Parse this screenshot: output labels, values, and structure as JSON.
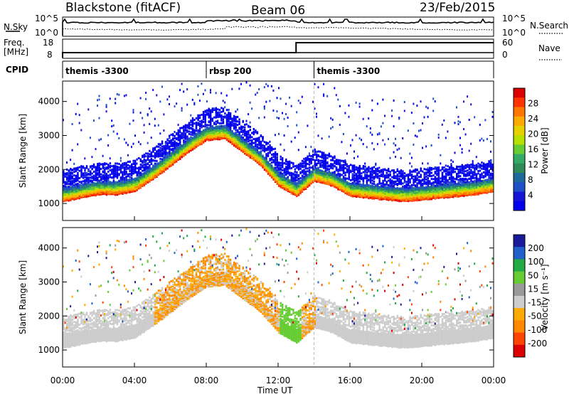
{
  "header": {
    "station": "Blackstone (fitACF)",
    "beam": "Beam 06",
    "date": "23/Feb/2015"
  },
  "top_panels": {
    "nsky_label": "N.Sky",
    "nsky_ticks": [
      "10^5",
      "10^0"
    ],
    "nsearch_label": "N.Search",
    "nsearch_ticks": [
      "10^5",
      "10^0"
    ],
    "freq_label_line1": "Freq.",
    "freq_label_line2": "[MHz]",
    "freq_ticks": [
      "18",
      "8"
    ],
    "nave_label": "Nave",
    "nave_ticks": [
      "60",
      "0"
    ],
    "cpid_label": "CPID",
    "cpid_segments": [
      {
        "label": "themis -3300",
        "start_hour": 0,
        "end_hour": 8
      },
      {
        "label": "rbsp 200",
        "start_hour": 8,
        "end_hour": 14
      },
      {
        "label": "themis -3300",
        "start_hour": 14,
        "end_hour": 24
      }
    ],
    "nave_step_hour": 13
  },
  "colorbars": {
    "power": {
      "label": "Power [dB]",
      "ticks": [
        "28",
        "24",
        "20",
        "16",
        "12",
        "8",
        "4"
      ],
      "colors": [
        "#dd0000",
        "#ff3300",
        "#ff7700",
        "#ffaa00",
        "#e6d000",
        "#b7e000",
        "#66cc33",
        "#33aa66",
        "#2e8b57",
        "#1c6a9c",
        "#1e4fc8",
        "#1515d8",
        "#0000ee"
      ]
    },
    "velocity": {
      "label": "Velocity [m s⁻¹]",
      "ticks": [
        "200",
        "100",
        "50",
        "15",
        "-15",
        "-50",
        "-100",
        "-200"
      ],
      "colors": [
        "#1a1a9a",
        "#2060c8",
        "#22aa44",
        "#66cc33",
        "#999999",
        "#cccccc",
        "#ffaa00",
        "#ff8800",
        "#ff4400",
        "#dd0000"
      ]
    }
  },
  "chart_data": [
    {
      "type": "heatmap",
      "title": "Power",
      "ylabel": "Slant Range [km]",
      "xlabel": "Time UT",
      "xlim": [
        0,
        24
      ],
      "ylim": [
        500,
        4600
      ],
      "yticks": [
        "4000",
        "3000",
        "2000",
        "1000"
      ],
      "xticks": [
        "00:00",
        "04:00",
        "08:00",
        "12:00",
        "16:00",
        "20:00",
        "00:00"
      ],
      "ground_scatter_band": {
        "x": [
          0,
          1,
          2,
          3,
          4,
          5,
          6,
          7,
          8,
          9,
          10,
          11,
          12,
          13,
          14,
          15,
          16,
          17,
          18,
          19,
          20,
          21,
          22,
          23,
          24
        ],
        "y": [
          1250,
          1350,
          1450,
          1450,
          1550,
          1900,
          2300,
          2700,
          3050,
          3100,
          2700,
          2300,
          1700,
          1400,
          1850,
          1700,
          1400,
          1350,
          1300,
          1250,
          1300,
          1350,
          1400,
          1450,
          1550
        ]
      }
    },
    {
      "type": "heatmap",
      "title": "Velocity",
      "ylabel": "Slant Range [km]",
      "xlabel": "Time UT",
      "xlim": [
        0,
        24
      ],
      "ylim": [
        500,
        4600
      ],
      "yticks": [
        "4000",
        "3000",
        "2000",
        "1000"
      ],
      "xticks": [
        "00:00",
        "04:00",
        "08:00",
        "12:00",
        "16:00",
        "20:00",
        "00:00"
      ]
    }
  ],
  "xaxis_title": "Time UT"
}
